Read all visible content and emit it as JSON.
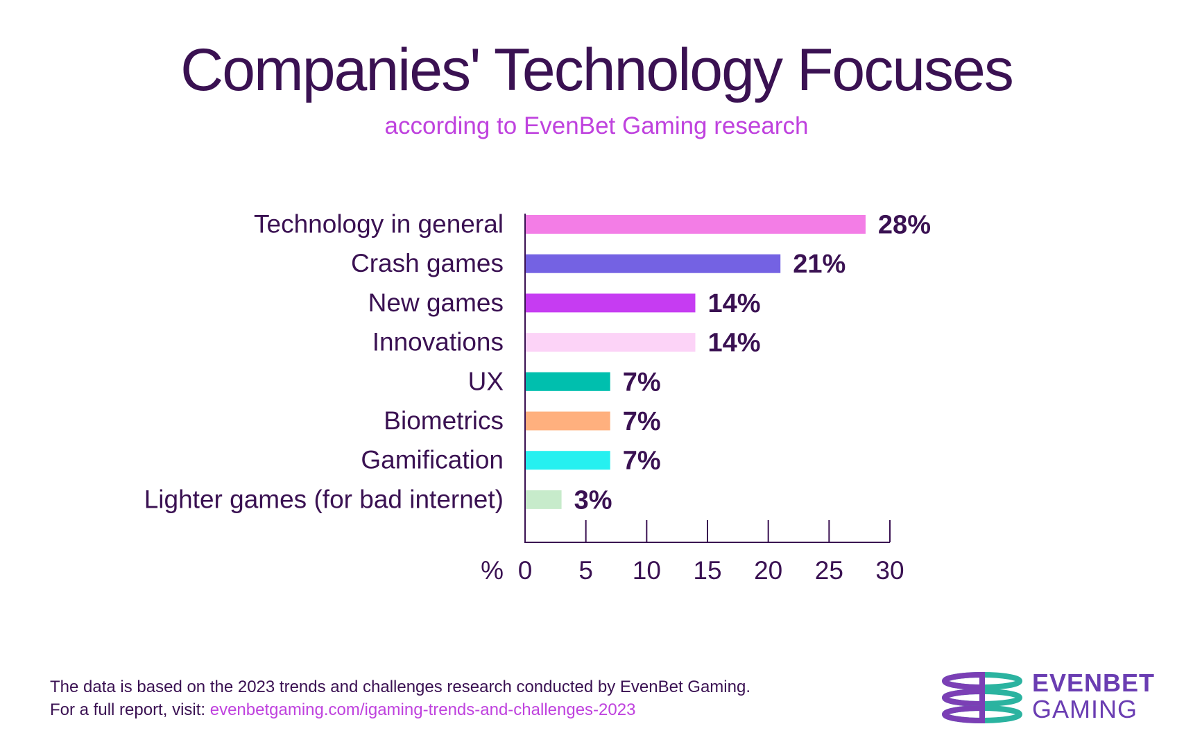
{
  "chart_data": {
    "type": "bar",
    "orientation": "horizontal",
    "title": "Companies' Technology Focuses",
    "subtitle": "according to EvenBet Gaming research",
    "categories": [
      "Technology in general",
      "Crash games",
      "New games",
      "Innovations",
      "UX",
      "Biometrics",
      "Gamification",
      "Lighter games (for bad internet)"
    ],
    "values": [
      28,
      21,
      14,
      14,
      7,
      7,
      7,
      3
    ],
    "value_labels": [
      "28%",
      "21%",
      "14%",
      "14%",
      "7%",
      "7%",
      "7%",
      "3%"
    ],
    "colors": [
      "#f37de6",
      "#7462e3",
      "#c63cf2",
      "#fcd3f7",
      "#00bfae",
      "#ffb07e",
      "#26f0f0",
      "#c7ebcb"
    ],
    "xlabel": "%",
    "xlim": [
      0,
      30
    ],
    "xticks": [
      0,
      5,
      10,
      15,
      20,
      25,
      30
    ],
    "grid": false,
    "legend": "none"
  },
  "footer": {
    "line1": "The data is based on the 2023 trends and challenges research conducted by EvenBet Gaming.",
    "line2_prefix": "For a full report, visit: ",
    "link": "evenbetgaming.com/igaming-trends-and-challenges-2023"
  },
  "logo": {
    "line1": "EVENBET",
    "line2": "GAMING",
    "colors": [
      "#7b3fb5",
      "#2bb3a0"
    ]
  }
}
